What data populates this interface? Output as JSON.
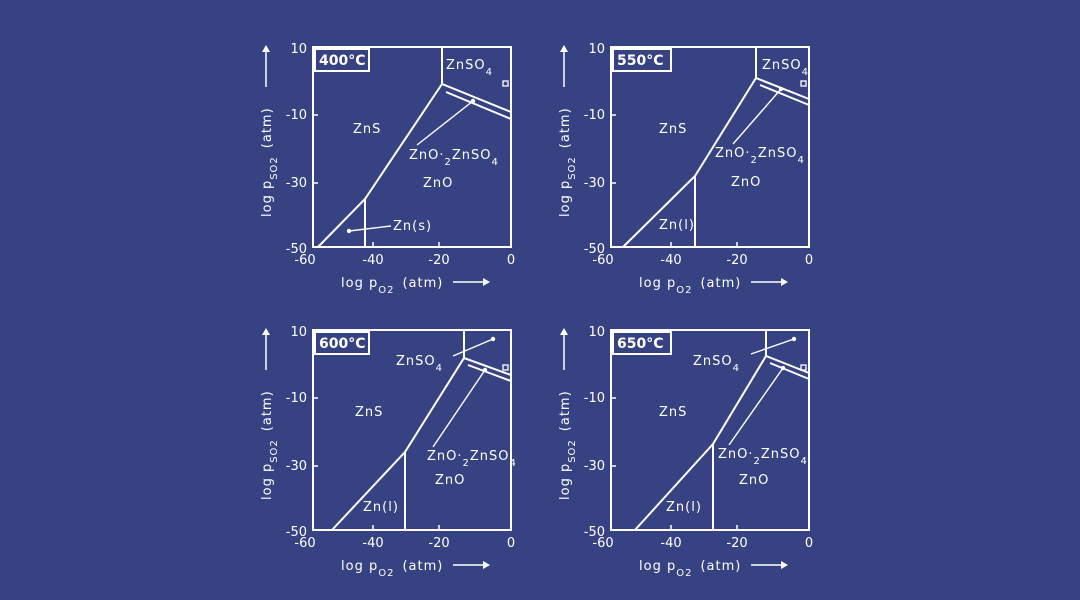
{
  "colors": {
    "background": "#374283",
    "ink": "#ffffff"
  },
  "axes": {
    "x_label_base": "log p",
    "x_label_sub": "O2",
    "x_label_unit": "(atm)",
    "y_label_base": "log p",
    "y_label_sub": "SO2",
    "y_label_unit": "(atm)",
    "x_ticks": [
      "-60",
      "-40",
      "-20",
      "0"
    ],
    "y_ticks": [
      "10",
      "-10",
      "-30",
      "-50"
    ]
  },
  "panels": [
    {
      "temperature": "400°C",
      "labels": {
        "zns": "ZnS",
        "zno": "ZnO",
        "znso4": "ZnSO4",
        "zno2znso4": "ZnO·2ZnSO4",
        "zn_phase": "Zn(s)"
      }
    },
    {
      "temperature": "550°C",
      "labels": {
        "zns": "ZnS",
        "zno": "ZnO",
        "znso4": "ZnSO4",
        "zno2znso4": "ZnO·2ZnSO4",
        "zn_phase": "Zn(l)"
      }
    },
    {
      "temperature": "600°C",
      "labels": {
        "zns": "ZnS",
        "zno": "ZnO",
        "znso4": "ZnSO4",
        "zno2znso4": "ZnO·2ZnSO4",
        "zn_phase": "Zn(l)"
      }
    },
    {
      "temperature": "650°C",
      "labels": {
        "zns": "ZnS",
        "zno": "ZnO",
        "znso4": "ZnSO4",
        "zno2znso4": "ZnO·2ZnSO4",
        "zn_phase": "Zn(l)"
      }
    }
  ]
}
